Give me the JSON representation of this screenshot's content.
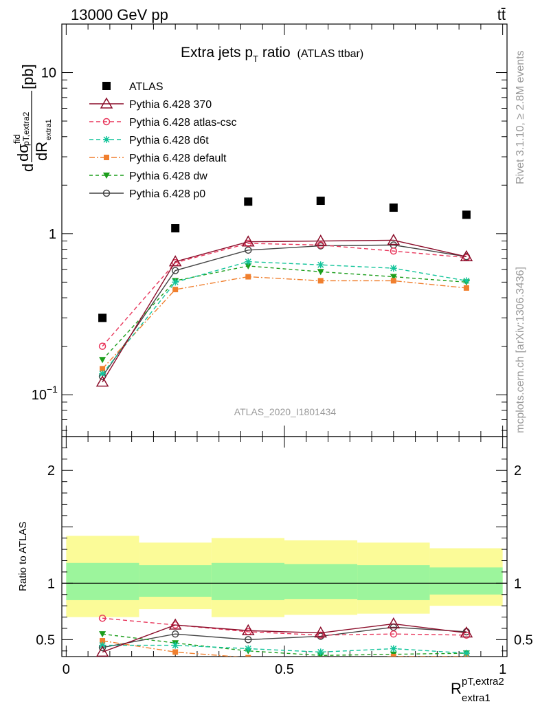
{
  "header": {
    "energy": "13000 GeV pp",
    "process": "tt̄"
  },
  "side_labels": {
    "rivet": "Rivet 3.1.10, ≥ 2.8M events",
    "mcplots": "mcplots.cern.ch [arXiv:1306.3436]"
  },
  "colors": {
    "atlas": "#000000",
    "p370": "#8b0d2a",
    "atlas_csc": "#e8365b",
    "d6t": "#12c49a",
    "default": "#f07f2e",
    "dw": "#1c9e1c",
    "p0": "#444444",
    "band_inner": "#9cf59c",
    "band_outer": "#fbfb98"
  },
  "chart_data": {
    "type": "line",
    "title": "Extra jets p",
    "title_sub": "T",
    "title_rest": " ratio",
    "title_note": "(ATLAS ttbar)",
    "analysis_id": "ATLAS_2020_I1801434",
    "ylabel_main": "[pb]",
    "ylabel_ratio": "Ratio to ATLAS",
    "xlabel": "R",
    "xlabel_sup": "pT,extra2",
    "xlabel_sub": "extra1",
    "xlim": [
      -0.01,
      1.01
    ],
    "ylim_main": [
      0.055,
      20
    ],
    "yscale_main": "log",
    "ylim_ratio": [
      0.35,
      2.3
    ],
    "x": [
      0.083,
      0.25,
      0.417,
      0.583,
      0.75,
      0.917
    ],
    "bin_edges": [
      0,
      0.167,
      0.333,
      0.5,
      0.667,
      0.833,
      1.0
    ],
    "main_yticks": [
      "10",
      "1",
      "10"
    ],
    "main_ytick_exp": "−1",
    "ratio_yticks": [
      "2",
      "1",
      "0.5"
    ],
    "xticks": [
      "0",
      "0.5",
      "1"
    ],
    "ratio_band_inner": [
      [
        0.85,
        1.18
      ],
      [
        0.88,
        1.16
      ],
      [
        0.85,
        1.18
      ],
      [
        0.86,
        1.17
      ],
      [
        0.85,
        1.16
      ],
      [
        0.9,
        1.14
      ]
    ],
    "ratio_band_outer": [
      [
        0.7,
        1.42
      ],
      [
        0.77,
        1.36
      ],
      [
        0.7,
        1.4
      ],
      [
        0.72,
        1.38
      ],
      [
        0.73,
        1.36
      ],
      [
        0.8,
        1.31
      ]
    ],
    "series": [
      {
        "name": "ATLAS",
        "key": "atlas",
        "marker": "square",
        "dash": "",
        "line": false,
        "values": [
          0.3,
          1.08,
          1.58,
          1.6,
          1.45,
          1.31
        ],
        "ratio": [
          1,
          1,
          1,
          1,
          1,
          1
        ]
      },
      {
        "name": "Pythia 6.428 370",
        "key": "p370",
        "marker": "triangle",
        "dash": "",
        "line": true,
        "values": [
          0.12,
          0.67,
          0.89,
          0.9,
          0.91,
          0.72
        ],
        "ratio": [
          0.39,
          0.63,
          0.58,
          0.56,
          0.64,
          0.56
        ]
      },
      {
        "name": "Pythia 6.428 atlas-csc",
        "key": "atlas_csc",
        "marker": "circle",
        "dash": "6,4",
        "line": true,
        "values": [
          0.2,
          0.66,
          0.87,
          0.85,
          0.78,
          0.71
        ],
        "ratio": [
          0.69,
          0.63,
          0.57,
          0.54,
          0.55,
          0.54
        ]
      },
      {
        "name": "Pythia 6.428 d6t",
        "key": "d6t",
        "marker": "star",
        "dash": "6,4",
        "line": true,
        "values": [
          0.135,
          0.5,
          0.67,
          0.64,
          0.61,
          0.51
        ],
        "ratio": [
          0.45,
          0.45,
          0.42,
          0.39,
          0.42,
          0.38
        ]
      },
      {
        "name": "Pythia 6.428 default",
        "key": "default",
        "marker": "square",
        "dash": "8,3,2,3",
        "line": true,
        "values": [
          0.145,
          0.45,
          0.54,
          0.51,
          0.51,
          0.46
        ],
        "ratio": [
          0.49,
          0.39,
          0.34,
          0.32,
          0.35,
          0.35
        ]
      },
      {
        "name": "Pythia 6.428 dw",
        "key": "dw",
        "marker": "triangle-down",
        "dash": "5,4",
        "line": true,
        "values": [
          0.165,
          0.51,
          0.63,
          0.58,
          0.54,
          0.5
        ],
        "ratio": [
          0.55,
          0.47,
          0.4,
          0.36,
          0.37,
          0.38
        ]
      },
      {
        "name": "Pythia 6.428 p0",
        "key": "p0",
        "marker": "open-circle",
        "dash": "",
        "line": true,
        "values": [
          0.13,
          0.59,
          0.79,
          0.84,
          0.85,
          0.72
        ],
        "ratio": [
          0.43,
          0.55,
          0.5,
          0.53,
          0.61,
          0.57
        ]
      }
    ]
  }
}
